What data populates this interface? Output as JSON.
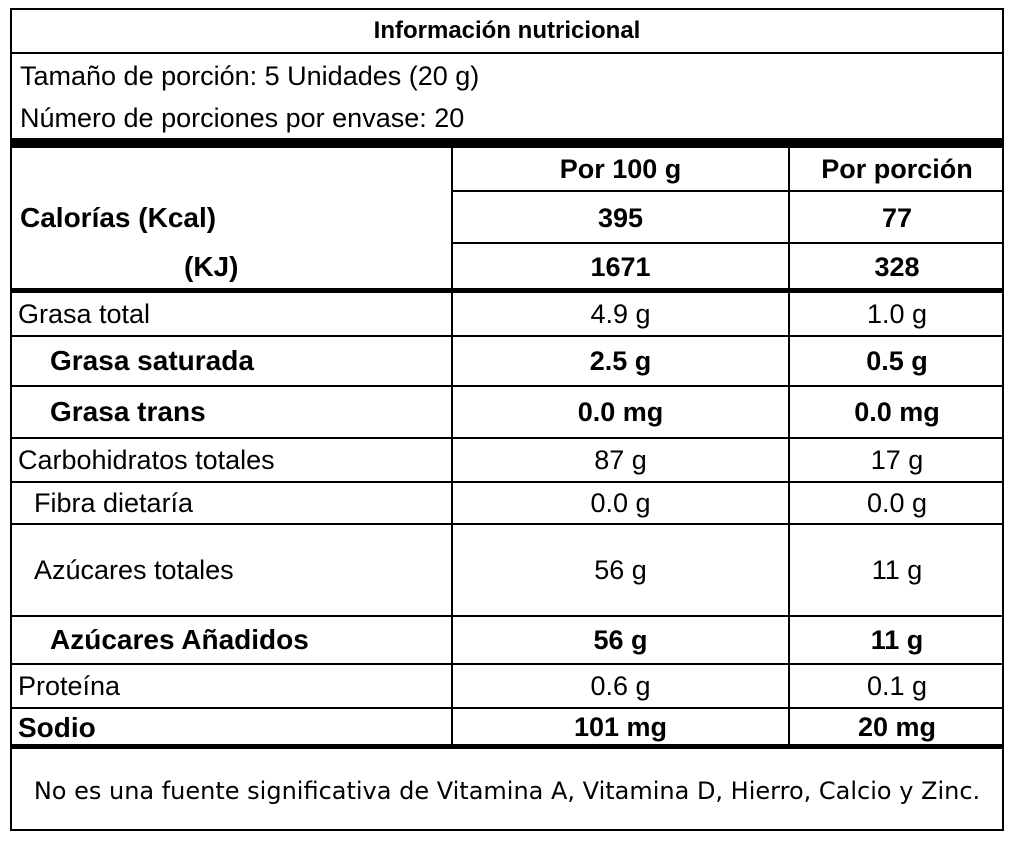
{
  "title": "Información nutricional",
  "serving": {
    "size": "Tamaño de porción: 5 Unidades (20 g)",
    "per_container": "Número de porciones por envase: 20"
  },
  "columns": {
    "per100": "Por 100  g",
    "per_serving": "Por porción"
  },
  "energy": {
    "kcal_label": "Calorías (Kcal)",
    "kj_label": "(KJ)",
    "kcal_100": "395",
    "kcal_serving": "77",
    "kj_100": "1671",
    "kj_serving": "328"
  },
  "nutrients": [
    {
      "label": "Grasa total",
      "per100": "4.9 g",
      "per_serving": "1.0 g"
    },
    {
      "label": "Grasa saturada",
      "per100": "2.5 g",
      "per_serving": "0.5 g"
    },
    {
      "label": "Grasa trans",
      "per100": "0.0 mg",
      "per_serving": "0.0 mg"
    },
    {
      "label": "Carbohidratos totales",
      "per100": "87 g",
      "per_serving": "17 g"
    },
    {
      "label": "Fibra dietaría",
      "per100": "0.0 g",
      "per_serving": "0.0 g"
    },
    {
      "label": "Azúcares totales",
      "per100": "56 g",
      "per_serving": "11 g"
    },
    {
      "label": "Azúcares Añadidos",
      "per100": "56 g",
      "per_serving": "11 g"
    },
    {
      "label": "Proteína",
      "per100": "0.6 g",
      "per_serving": "0.1 g"
    },
    {
      "label": "Sodio",
      "per100": "101 mg",
      "per_serving": "20 mg"
    }
  ],
  "footer": "No es una fuente significativa de Vitamina A, Vitamina D, Hierro, Calcio y Zinc."
}
